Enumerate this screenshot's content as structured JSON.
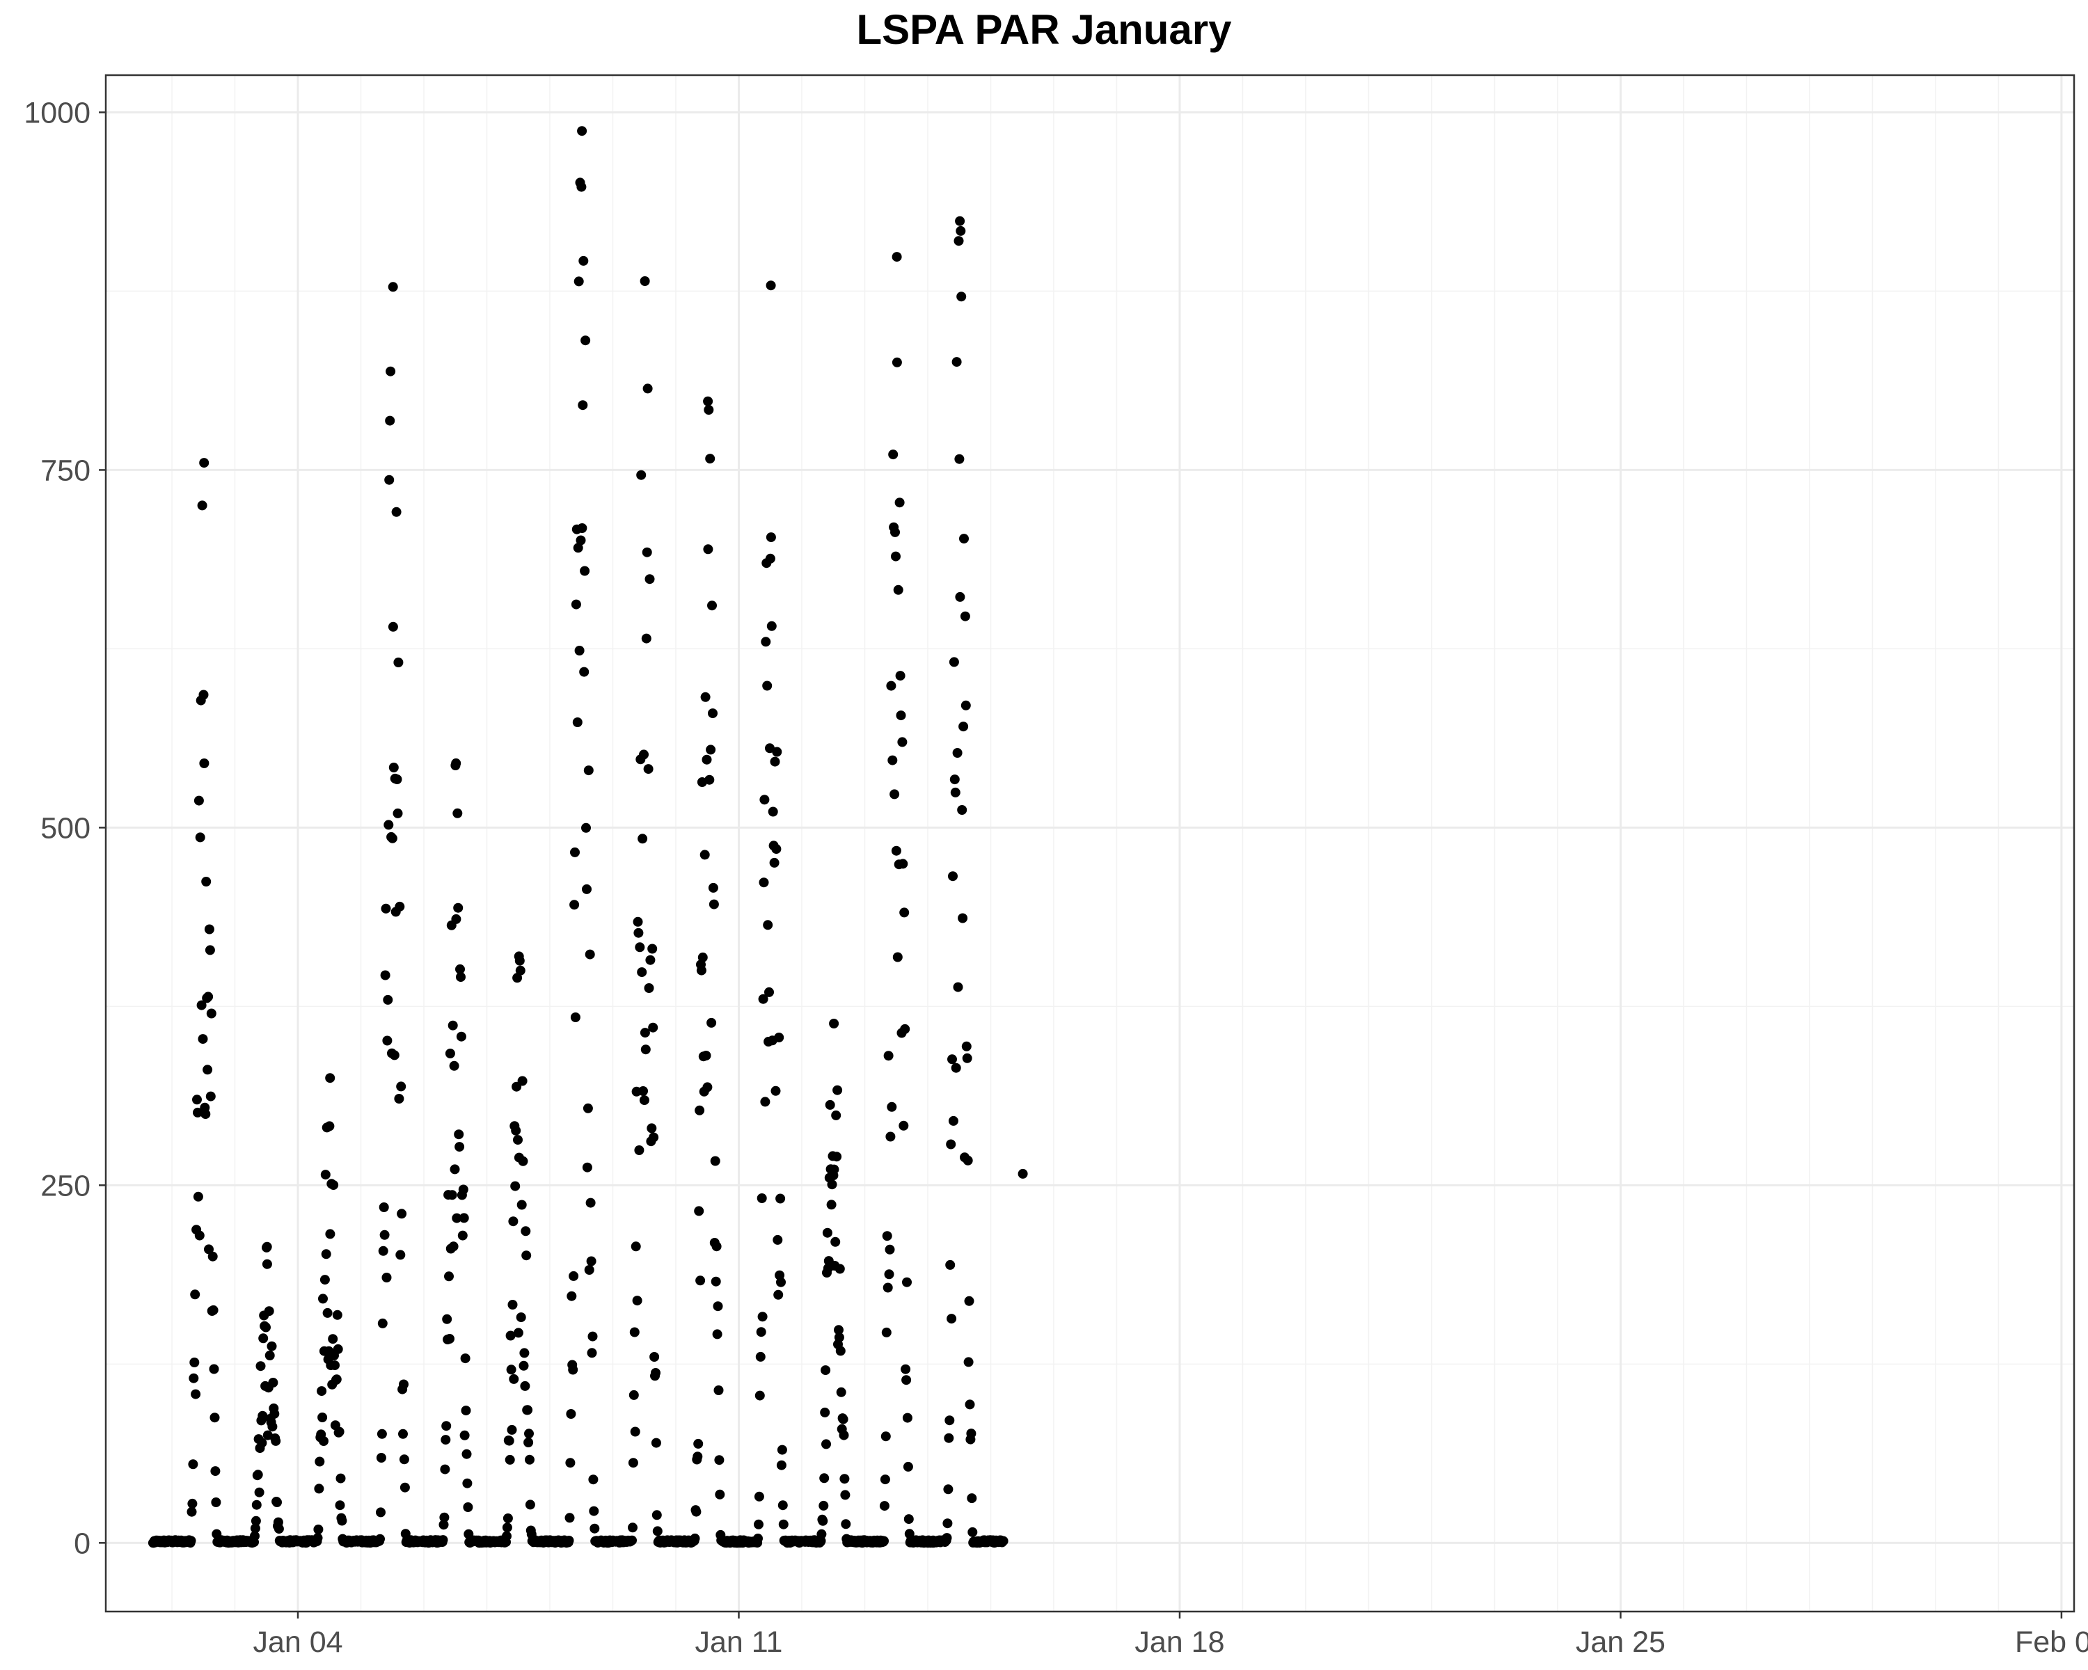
{
  "chart_data": {
    "type": "scatter",
    "title": "LSPA PAR January",
    "xlabel": "",
    "ylabel": "",
    "x_start_date": "2025-01-01",
    "xlim_days": [
      0.95,
      32.2
    ],
    "ylim": [
      -48,
      1026
    ],
    "x_ticks": [
      {
        "day": 4,
        "label": "Jan 04"
      },
      {
        "day": 11,
        "label": "Jan 11"
      },
      {
        "day": 18,
        "label": "Jan 18"
      },
      {
        "day": 25,
        "label": "Jan 25"
      },
      {
        "day": 32,
        "label": "Feb 01"
      }
    ],
    "y_ticks": [
      0,
      250,
      500,
      750,
      1000
    ],
    "grid": true,
    "point_color": "#000000",
    "daily_peaks": [
      {
        "day": 2,
        "peak": 755
      },
      {
        "day": 3,
        "peak": 207
      },
      {
        "day": 4,
        "peak": 325
      },
      {
        "day": 5,
        "peak": 878
      },
      {
        "day": 6,
        "peak": 545
      },
      {
        "day": 7,
        "peak": 410
      },
      {
        "day": 8,
        "peak": 987
      },
      {
        "day": 9,
        "peak": 882
      },
      {
        "day": 10,
        "peak": 798
      },
      {
        "day": 11,
        "peak": 879
      },
      {
        "day": 12,
        "peak": 363
      },
      {
        "day": 13,
        "peak": 899
      },
      {
        "day": 14,
        "peak": 924
      },
      {
        "day": 15,
        "peak": 258
      }
    ],
    "data_end_day": 15.2
  }
}
